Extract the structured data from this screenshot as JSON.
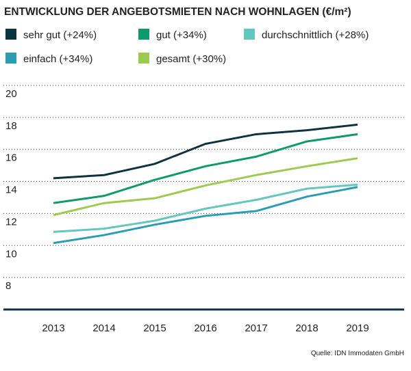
{
  "chart_data": {
    "type": "line",
    "title": "ENTWICKLUNG DER ANGEBOTSMIETEN NACH WOHNLAGEN (€/m²)",
    "categories": [
      "2013",
      "2014",
      "2015",
      "2016",
      "2017",
      "2018",
      "2019"
    ],
    "series": [
      {
        "name": "sehr gut (+24%)",
        "color": "#0d3340",
        "values": [
          14.2,
          14.4,
          15.1,
          16.35,
          16.95,
          17.2,
          17.55
        ]
      },
      {
        "name": "gut (+34%)",
        "color": "#0e9a6a",
        "values": [
          12.65,
          13.1,
          14.1,
          14.95,
          15.55,
          16.5,
          16.95
        ]
      },
      {
        "name": "durchschnittlich (+28%)",
        "color": "#63c7c0",
        "values": [
          10.85,
          11.05,
          11.55,
          12.3,
          12.85,
          13.55,
          13.8
        ]
      },
      {
        "name": "einfach (+34%)",
        "color": "#2a9db5",
        "values": [
          10.15,
          10.65,
          11.3,
          11.85,
          12.15,
          13.05,
          13.65
        ]
      },
      {
        "name": "gesamt (+30%)",
        "color": "#9ccc4f",
        "values": [
          11.9,
          12.65,
          12.95,
          13.75,
          14.4,
          14.95,
          15.45
        ]
      }
    ],
    "ylim": [
      6,
      20
    ],
    "yticks": [
      8,
      10,
      12,
      14,
      16,
      18,
      20
    ],
    "grid": true,
    "source": "Quelle: IDN Immodaten GmbH"
  }
}
